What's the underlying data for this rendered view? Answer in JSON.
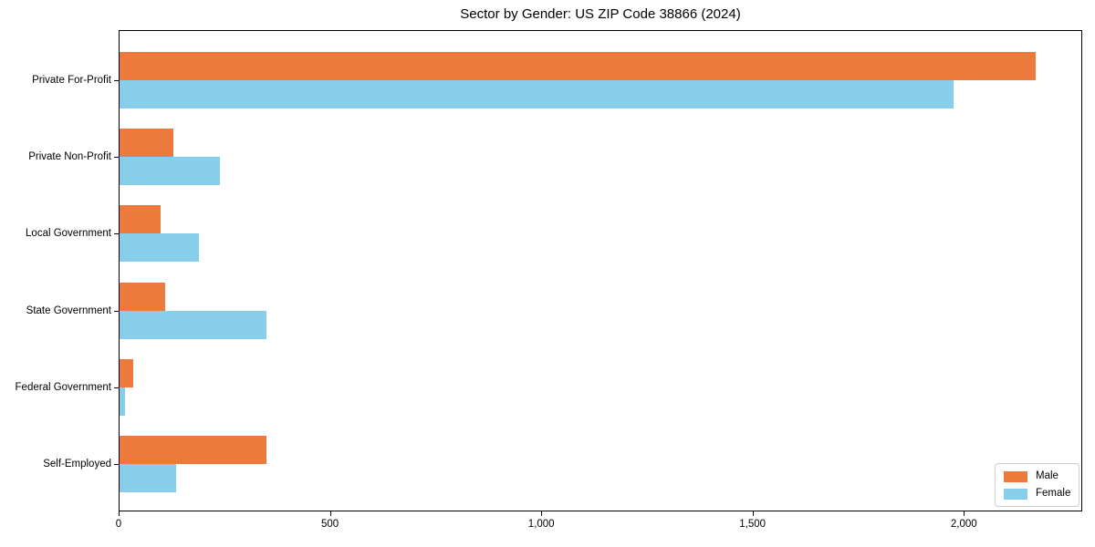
{
  "chart_data": {
    "type": "bar",
    "orientation": "horizontal",
    "title": "Sector by Gender: US ZIP Code 38866 (2024)",
    "categories": [
      "Private For-Profit",
      "Private Non-Profit",
      "Local Government",
      "State Government",
      "Federal Government",
      "Self-Employed"
    ],
    "series": [
      {
        "name": "Male",
        "color": "#ec7a3d",
        "values": [
          2170,
          130,
          100,
          110,
          35,
          350
        ]
      },
      {
        "name": "Female",
        "color": "#87ceeb",
        "values": [
          1975,
          240,
          190,
          350,
          15,
          135
        ]
      }
    ],
    "xlabel": "",
    "ylabel": "",
    "xlim": [
      0,
      2280
    ],
    "xticks": [
      0,
      500,
      1000,
      1500,
      2000
    ],
    "xtick_labels": [
      "0",
      "500",
      "1,000",
      "1,500",
      "2,000"
    ],
    "legend": {
      "position": "lower right",
      "entries": [
        "Male",
        "Female"
      ]
    },
    "grid": false,
    "background_color": "#ffffff",
    "axis_color": "#000000"
  }
}
